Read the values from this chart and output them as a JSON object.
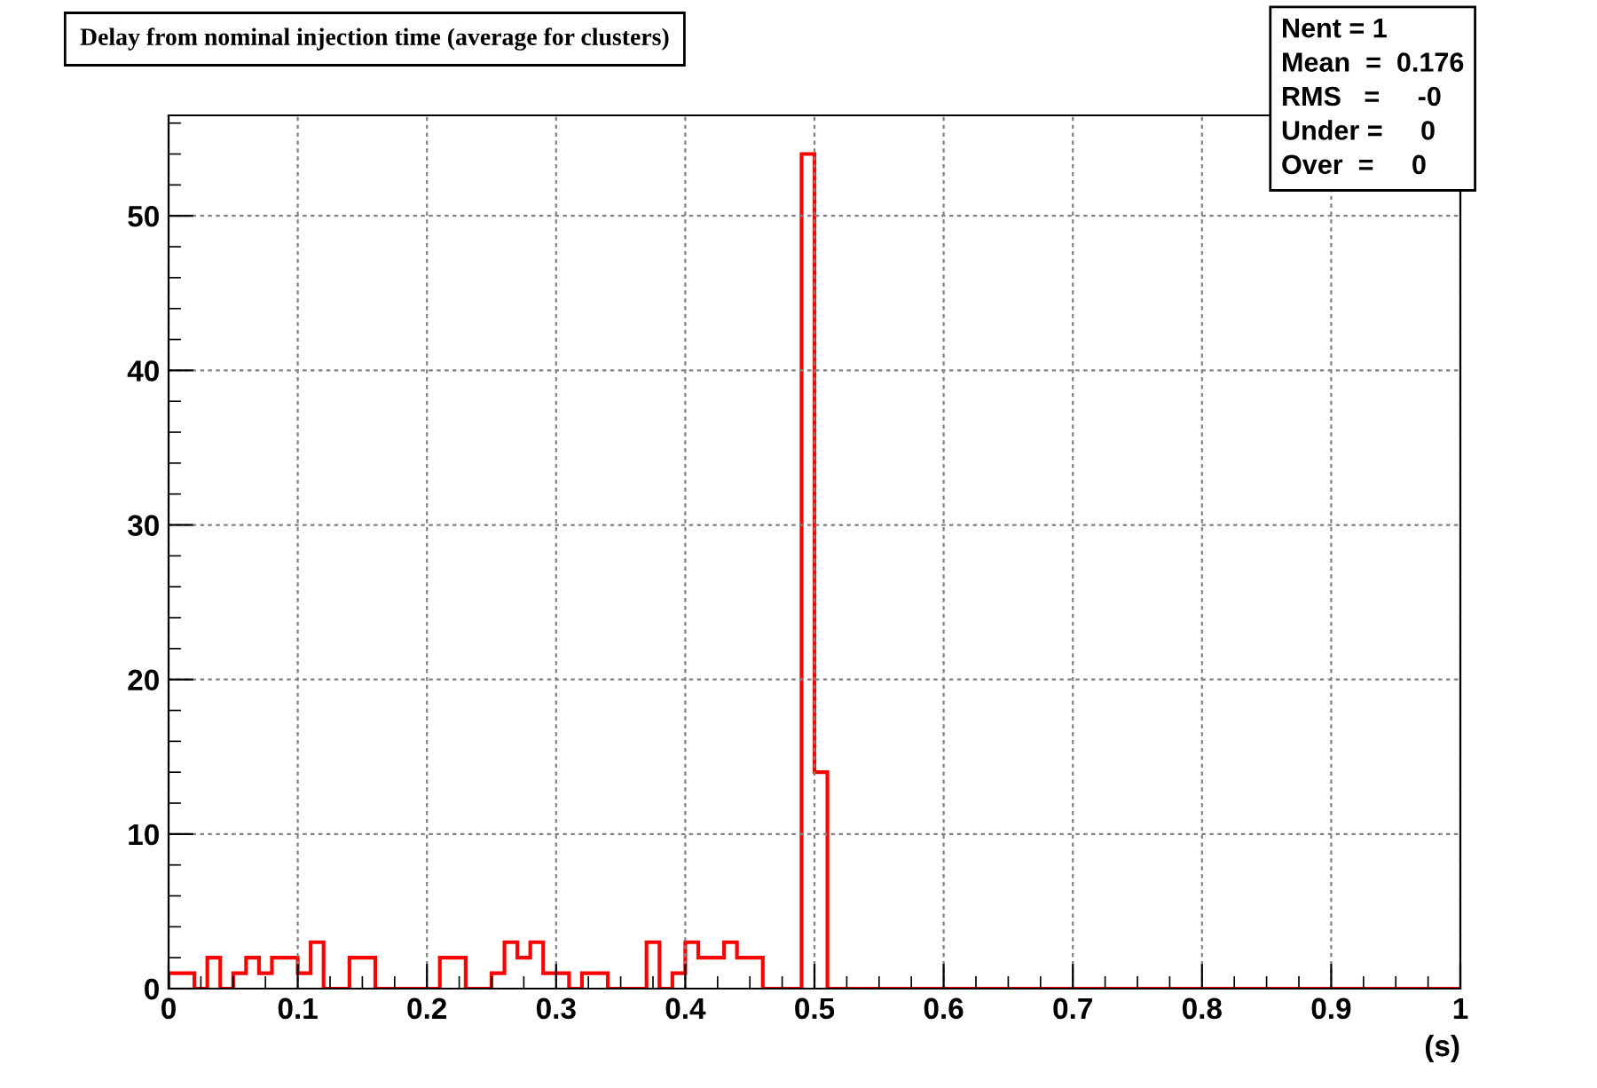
{
  "chart_data": {
    "type": "histogram",
    "title": "Delay from nominal injection time (average for clusters)",
    "xlabel": "(s)",
    "bins": [
      0,
      0.01,
      0.02,
      0.03,
      0.04,
      0.05,
      0.06,
      0.07,
      0.08,
      0.09,
      0.1,
      0.11,
      0.12,
      0.13,
      0.14,
      0.15,
      0.16,
      0.17,
      0.18,
      0.19,
      0.2,
      0.21,
      0.22,
      0.23,
      0.24,
      0.25,
      0.26,
      0.27,
      0.28,
      0.29,
      0.3,
      0.31,
      0.32,
      0.33,
      0.34,
      0.35,
      0.36,
      0.37,
      0.38,
      0.39,
      0.4,
      0.41,
      0.42,
      0.43,
      0.44,
      0.45,
      0.46,
      0.47,
      0.48,
      0.49,
      0.5,
      0.51,
      0.52,
      0.53,
      0.54,
      0.55,
      0.56,
      0.57,
      0.58,
      0.59,
      0.6,
      0.61,
      0.62,
      0.63,
      0.64,
      0.65,
      0.66,
      0.67,
      0.68,
      0.69,
      0.7,
      0.71,
      0.72,
      0.73,
      0.74,
      0.75,
      0.76,
      0.77,
      0.78,
      0.79,
      0.8,
      0.81,
      0.82,
      0.83,
      0.84,
      0.85,
      0.86,
      0.87,
      0.88,
      0.89,
      0.9,
      0.91,
      0.92,
      0.93,
      0.94,
      0.95,
      0.96,
      0.97,
      0.98,
      0.99,
      1
    ],
    "values": [
      1,
      1,
      0,
      2,
      0,
      1,
      2,
      1,
      2,
      2,
      1,
      3,
      0,
      0,
      2,
      2,
      0,
      0,
      0,
      0,
      0,
      2,
      2,
      0,
      0,
      1,
      3,
      2,
      3,
      1,
      1,
      0,
      1,
      1,
      0,
      0,
      0,
      3,
      0,
      1,
      3,
      2,
      2,
      3,
      2,
      2,
      0,
      0,
      0,
      54,
      14,
      0,
      0,
      0,
      0,
      0,
      0,
      0,
      0,
      0,
      0,
      0,
      0,
      0,
      0,
      0,
      0,
      0,
      0,
      0,
      0,
      0,
      0,
      0,
      0,
      0,
      0,
      0,
      0,
      0,
      0,
      0,
      0,
      0,
      0,
      0,
      0,
      0,
      0,
      0,
      0,
      0,
      0,
      0,
      0,
      0,
      0,
      0,
      0,
      0
    ],
    "color": "#ff0000",
    "xlim": [
      0,
      1
    ],
    "xticks": [
      0,
      0.1,
      0.2,
      0.3,
      0.4,
      0.5,
      0.6,
      0.7,
      0.8,
      0.9,
      1
    ],
    "ylim": [
      0,
      56.5
    ],
    "yticks": [
      0,
      10,
      20,
      30,
      40,
      50
    ],
    "grid": true,
    "annotations": [
      "Nent = 1",
      "Mean  =  0.176",
      "RMS   =     -0",
      "Under =     0",
      "Over  =     0"
    ]
  }
}
